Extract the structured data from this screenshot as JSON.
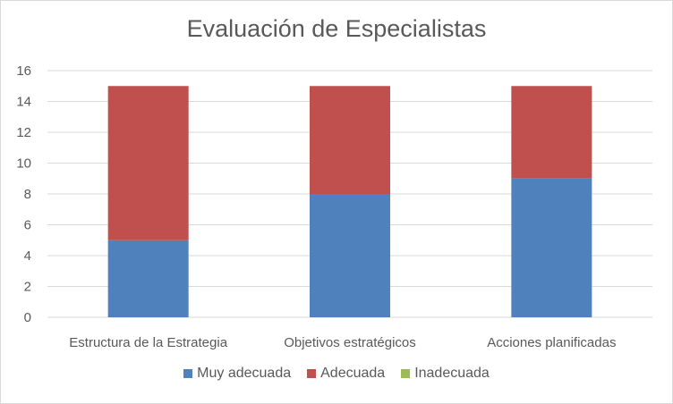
{
  "chart_data": {
    "type": "bar",
    "stacked": true,
    "title": "Evaluación de Especialistas",
    "categories": [
      "Estructura de la Estrategia",
      "Objetivos estratégicos",
      "Acciones planificadas"
    ],
    "series": [
      {
        "name": "Muy adecuada",
        "values": [
          5,
          8,
          9
        ],
        "color": "#4f81bd"
      },
      {
        "name": "Adecuada",
        "values": [
          10,
          7,
          6
        ],
        "color": "#c0504d"
      },
      {
        "name": "Inadecuada",
        "values": [
          0,
          0,
          0
        ],
        "color": "#9bbb59"
      }
    ],
    "ylim": [
      0,
      16
    ],
    "yticks": [
      "0",
      "2",
      "4",
      "6",
      "8",
      "10",
      "12",
      "14",
      "16"
    ],
    "grid": true,
    "legend_position": "bottom"
  }
}
